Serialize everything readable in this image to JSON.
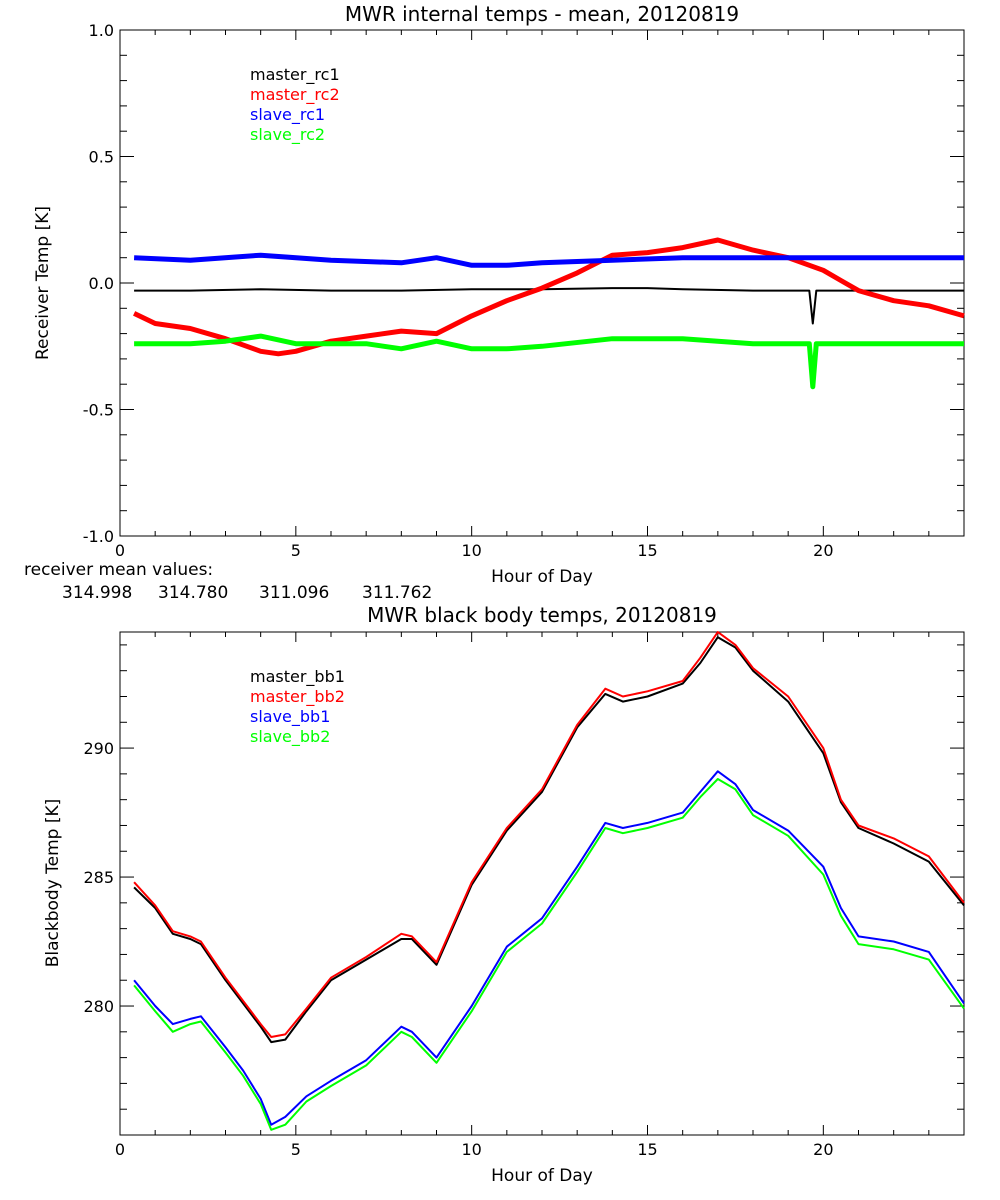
{
  "chart_data": [
    {
      "type": "line",
      "title": "MWR internal temps - mean, 20120819",
      "xlabel": "Hour of Day",
      "ylabel": "Receiver Temp [K]",
      "xlim": [
        0,
        24
      ],
      "ylim": [
        -1.0,
        1.0
      ],
      "xticks": [
        0,
        5,
        10,
        15,
        20
      ],
      "yticks": [
        -1.0,
        -0.5,
        0.0,
        0.5,
        1.0
      ],
      "ytick_labels": [
        "-1.0",
        "-0.5",
        "0.0",
        "0.5",
        "1.0"
      ],
      "legend_position": "top-left",
      "series": [
        {
          "name": "master_rc1",
          "color": "#000000",
          "x": [
            0.4,
            2,
            4,
            6,
            8,
            10,
            12,
            14,
            15,
            16,
            18,
            19.6,
            19.7,
            19.8,
            20,
            22,
            24
          ],
          "y": [
            -0.03,
            -0.03,
            -0.025,
            -0.03,
            -0.03,
            -0.025,
            -0.025,
            -0.02,
            -0.02,
            -0.025,
            -0.03,
            -0.03,
            -0.16,
            -0.03,
            -0.03,
            -0.03,
            -0.03
          ]
        },
        {
          "name": "master_rc2",
          "color": "#ff0000",
          "x": [
            0.4,
            1,
            2,
            3,
            4,
            4.5,
            5,
            6,
            7,
            8,
            9,
            10,
            11,
            12,
            13,
            14,
            15,
            16,
            17,
            18,
            19,
            20,
            20.5,
            21,
            22,
            23,
            24
          ],
          "y": [
            -0.12,
            -0.16,
            -0.18,
            -0.22,
            -0.27,
            -0.28,
            -0.27,
            -0.23,
            -0.21,
            -0.19,
            -0.2,
            -0.13,
            -0.07,
            -0.02,
            0.04,
            0.11,
            0.12,
            0.14,
            0.17,
            0.13,
            0.1,
            0.05,
            0.01,
            -0.03,
            -0.07,
            -0.09,
            -0.13
          ]
        },
        {
          "name": "slave_rc1",
          "color": "#0000ff",
          "x": [
            0.4,
            2,
            4,
            6,
            8,
            9,
            10,
            11,
            12,
            14,
            16,
            18,
            20,
            22,
            24
          ],
          "y": [
            0.1,
            0.09,
            0.11,
            0.09,
            0.08,
            0.1,
            0.07,
            0.07,
            0.08,
            0.09,
            0.1,
            0.1,
            0.1,
            0.1,
            0.1
          ]
        },
        {
          "name": "slave_rc2",
          "color": "#00ff00",
          "x": [
            0.4,
            2,
            3,
            4,
            5,
            6,
            7,
            8,
            9,
            10,
            11,
            12,
            14,
            16,
            18,
            19.6,
            19.7,
            19.8,
            20,
            22,
            24
          ],
          "y": [
            -0.24,
            -0.24,
            -0.23,
            -0.21,
            -0.24,
            -0.24,
            -0.24,
            -0.26,
            -0.23,
            -0.26,
            -0.26,
            -0.25,
            -0.22,
            -0.22,
            -0.24,
            -0.24,
            -0.41,
            -0.24,
            -0.24,
            -0.24,
            -0.24
          ]
        }
      ]
    },
    {
      "type": "line",
      "title": "MWR black body temps, 20120819",
      "xlabel": "Hour of Day",
      "ylabel": "Blackbody Temp [K]",
      "xlim": [
        0,
        24
      ],
      "ylim": [
        275,
        294.5
      ],
      "xticks": [
        0,
        5,
        10,
        15,
        20
      ],
      "yticks": [
        280,
        285,
        290
      ],
      "legend_position": "top-left",
      "series": [
        {
          "name": "master_bb1",
          "color": "#000000",
          "x": [
            0.4,
            1,
            1.5,
            2,
            2.3,
            3,
            3.5,
            4,
            4.3,
            4.7,
            5.3,
            6,
            7,
            8,
            8.3,
            9,
            10,
            11,
            12,
            13,
            13.8,
            14.3,
            15,
            16,
            16.5,
            17,
            17.5,
            18,
            19,
            20,
            20.5,
            21,
            22,
            23,
            24
          ],
          "y": [
            284.6,
            283.8,
            282.8,
            282.6,
            282.4,
            281.0,
            280.1,
            279.2,
            278.6,
            278.7,
            279.8,
            281.0,
            281.8,
            282.6,
            282.6,
            281.6,
            284.7,
            286.8,
            288.3,
            290.8,
            292.1,
            291.8,
            292.0,
            292.5,
            293.3,
            294.3,
            293.9,
            293.0,
            291.8,
            289.8,
            287.9,
            286.9,
            286.3,
            285.6,
            283.9
          ]
        },
        {
          "name": "master_bb2",
          "color": "#ff0000",
          "x": [
            0.4,
            1,
            1.5,
            2,
            2.3,
            3,
            3.5,
            4,
            4.3,
            4.7,
            5.3,
            6,
            7,
            8,
            8.3,
            9,
            10,
            11,
            12,
            13,
            13.8,
            14.3,
            15,
            16,
            16.5,
            17,
            17.5,
            18,
            19,
            20,
            20.5,
            21,
            22,
            23,
            24
          ],
          "y": [
            284.8,
            283.9,
            282.9,
            282.7,
            282.5,
            281.1,
            280.2,
            279.3,
            278.8,
            278.9,
            279.9,
            281.1,
            281.9,
            282.8,
            282.7,
            281.7,
            284.8,
            286.9,
            288.4,
            290.9,
            292.3,
            292.0,
            292.2,
            292.6,
            293.5,
            294.5,
            294.0,
            293.1,
            292.0,
            290.0,
            288.0,
            287.0,
            286.5,
            285.8,
            284.0
          ]
        },
        {
          "name": "slave_bb1",
          "color": "#0000ff",
          "x": [
            0.4,
            1,
            1.5,
            2,
            2.3,
            3,
            3.5,
            4,
            4.3,
            4.7,
            5.3,
            6,
            7,
            8,
            8.3,
            9,
            10,
            11,
            12,
            13,
            13.8,
            14.3,
            15,
            16,
            16.5,
            17,
            17.5,
            18,
            19,
            20,
            20.5,
            21,
            22,
            23,
            24
          ],
          "y": [
            281.0,
            280.0,
            279.3,
            279.5,
            279.6,
            278.4,
            277.5,
            276.4,
            275.4,
            275.7,
            276.5,
            277.1,
            277.9,
            279.2,
            279.0,
            278.0,
            280.0,
            282.3,
            283.4,
            285.4,
            287.1,
            286.9,
            287.1,
            287.5,
            288.3,
            289.1,
            288.6,
            287.6,
            286.8,
            285.4,
            283.8,
            282.7,
            282.5,
            282.1,
            280.1
          ]
        },
        {
          "name": "slave_bb2",
          "color": "#00ff00",
          "x": [
            0.4,
            1,
            1.5,
            2,
            2.3,
            3,
            3.5,
            4,
            4.3,
            4.7,
            5.3,
            6,
            7,
            8,
            8.3,
            9,
            10,
            11,
            12,
            13,
            13.8,
            14.3,
            15,
            16,
            16.5,
            17,
            17.5,
            18,
            19,
            20,
            20.5,
            21,
            22,
            23,
            24
          ],
          "y": [
            280.8,
            279.8,
            279.0,
            279.3,
            279.4,
            278.2,
            277.3,
            276.2,
            275.2,
            275.4,
            276.3,
            276.9,
            277.7,
            279.0,
            278.8,
            277.8,
            279.8,
            282.1,
            283.2,
            285.2,
            286.9,
            286.7,
            286.9,
            287.3,
            288.1,
            288.8,
            288.4,
            287.4,
            286.6,
            285.1,
            283.5,
            282.4,
            282.2,
            281.8,
            279.9
          ]
        }
      ]
    }
  ],
  "mean_values": {
    "label": "receiver mean values:",
    "items": [
      {
        "value": "314.998",
        "color": "#000000"
      },
      {
        "value": "314.780",
        "color": "#ff0000"
      },
      {
        "value": "311.096",
        "color": "#0000ff"
      },
      {
        "value": "311.762",
        "color": "#00ff00"
      }
    ]
  }
}
